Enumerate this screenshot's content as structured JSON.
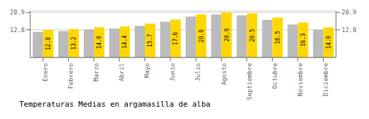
{
  "chart_data": {
    "type": "bar",
    "title": "Temperaturas Medias en argamasilla de alba",
    "categories": [
      "Enero",
      "Febrero",
      "Marzo",
      "Abril",
      "Mayo",
      "Junio",
      "Julio",
      "Agosto",
      "Septiembre",
      "Octubre",
      "Noviembre",
      "Diciembre"
    ],
    "series": [
      {
        "color": "#BBBBBB",
        "values": [
          11.8,
          12.2,
          13.0,
          13.4,
          14.7,
          16.6,
          19.0,
          19.9,
          19.5,
          17.5,
          15.3,
          13.0
        ]
      },
      {
        "color": "#FFD700",
        "data_labels": true,
        "values": [
          12.8,
          13.2,
          14.0,
          14.4,
          15.7,
          17.6,
          20.0,
          20.9,
          20.5,
          18.5,
          16.3,
          14.0
        ],
        "value_labels": [
          "12.8",
          "13.2",
          "14.0",
          "14.4",
          "15.7",
          "17.6",
          "20.0",
          "20.9",
          "20.5",
          "18.5",
          "16.3",
          "14.0"
        ]
      }
    ],
    "ylim": [
      0,
      21.6
    ],
    "yticks": [
      12.8,
      20.9
    ],
    "y2lim": [
      0,
      21.6
    ],
    "y2ticks": [
      12.8,
      20.9
    ],
    "grid": true
  }
}
